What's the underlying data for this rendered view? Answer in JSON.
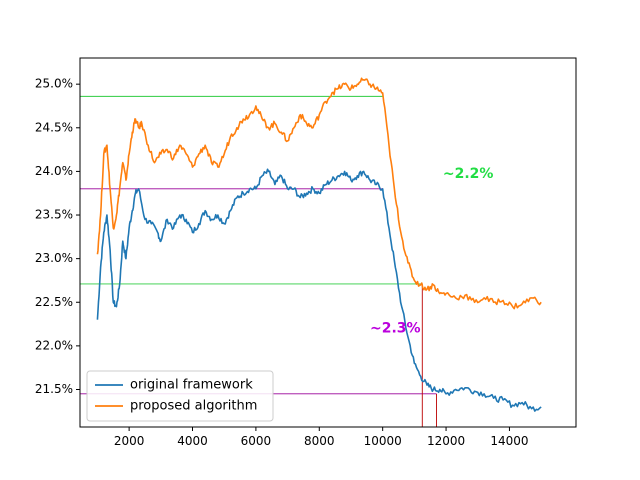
{
  "chart_data": {
    "type": "line",
    "title": "",
    "xlabel": "",
    "ylabel": "",
    "xlim": [
      450,
      16100
    ],
    "ylim": [
      21.07,
      25.3
    ],
    "x_ticks": [
      2000,
      4000,
      6000,
      8000,
      10000,
      12000,
      14000
    ],
    "x_tick_labels": [
      "2000",
      "4000",
      "6000",
      "8000",
      "10000",
      "12000",
      "14000"
    ],
    "y_ticks": [
      21.5,
      22.0,
      22.5,
      23.0,
      23.5,
      24.0,
      24.5,
      25.0
    ],
    "y_tick_labels": [
      "21.5%",
      "22.0%",
      "22.5%",
      "23.0%",
      "23.5%",
      "24.0%",
      "24.5%",
      "25.0%"
    ],
    "grid": false,
    "legend_position": "lower-left",
    "series": [
      {
        "name": "original framework",
        "color": "#1f77b4",
        "x": [
          1000,
          1100,
          1200,
          1300,
          1400,
          1500,
          1600,
          1700,
          1800,
          1900,
          2000,
          2100,
          2200,
          2300,
          2500,
          2700,
          2900,
          3000,
          3200,
          3400,
          3600,
          3800,
          4000,
          4200,
          4400,
          4600,
          4800,
          5000,
          5200,
          5400,
          5600,
          5800,
          6000,
          6200,
          6400,
          6600,
          6800,
          7000,
          7200,
          7400,
          7600,
          7800,
          8000,
          8200,
          8400,
          8600,
          8800,
          9000,
          9200,
          9400,
          9600,
          9800,
          10000,
          10200,
          10400,
          10600,
          10800,
          11000,
          11200,
          11400,
          11600,
          11800,
          12000,
          12300,
          12600,
          12900,
          13200,
          13500,
          13800,
          14100,
          14400,
          14700,
          15000
        ],
        "y": [
          22.3,
          22.9,
          23.3,
          23.5,
          23.1,
          22.5,
          22.45,
          22.7,
          23.2,
          23.0,
          23.35,
          23.55,
          23.75,
          23.8,
          23.45,
          23.4,
          23.3,
          23.2,
          23.45,
          23.35,
          23.5,
          23.45,
          23.3,
          23.4,
          23.55,
          23.45,
          23.5,
          23.4,
          23.55,
          23.7,
          23.75,
          23.8,
          23.8,
          23.95,
          24.0,
          23.85,
          23.95,
          23.8,
          23.8,
          23.7,
          23.75,
          23.8,
          23.75,
          23.85,
          23.9,
          23.95,
          24.0,
          23.9,
          23.95,
          24.0,
          23.9,
          23.85,
          23.8,
          23.35,
          22.9,
          22.45,
          22.1,
          21.8,
          21.65,
          21.55,
          21.5,
          21.5,
          21.45,
          21.5,
          21.52,
          21.48,
          21.45,
          21.4,
          21.38,
          21.32,
          21.35,
          21.28,
          21.3
        ]
      },
      {
        "name": "proposed algorithm",
        "color": "#ff7f0e",
        "x": [
          1000,
          1100,
          1200,
          1300,
          1400,
          1500,
          1600,
          1700,
          1800,
          1900,
          2000,
          2100,
          2200,
          2300,
          2400,
          2600,
          2800,
          3000,
          3200,
          3400,
          3600,
          3800,
          4000,
          4200,
          4400,
          4600,
          4800,
          5000,
          5200,
          5400,
          5600,
          5800,
          6000,
          6200,
          6400,
          6600,
          6800,
          7000,
          7200,
          7400,
          7600,
          7800,
          8000,
          8200,
          8400,
          8600,
          8800,
          9000,
          9200,
          9400,
          9600,
          9800,
          10000,
          10200,
          10400,
          10600,
          10800,
          11000,
          11200,
          11400,
          11600,
          11800,
          12000,
          12300,
          12600,
          12900,
          13200,
          13500,
          13800,
          14100,
          14400,
          14700,
          15000
        ],
        "y": [
          23.05,
          23.5,
          24.2,
          24.3,
          23.8,
          23.35,
          23.5,
          23.8,
          24.1,
          23.9,
          24.2,
          24.45,
          24.6,
          24.5,
          24.55,
          24.3,
          24.1,
          24.2,
          24.25,
          24.15,
          24.3,
          24.2,
          24.05,
          24.2,
          24.3,
          24.1,
          24.05,
          24.2,
          24.4,
          24.5,
          24.6,
          24.65,
          24.75,
          24.6,
          24.5,
          24.55,
          24.45,
          24.35,
          24.5,
          24.65,
          24.55,
          24.5,
          24.65,
          24.8,
          24.9,
          24.95,
          25.0,
          24.95,
          25.0,
          25.05,
          25.0,
          24.95,
          24.9,
          24.3,
          23.7,
          23.25,
          22.95,
          22.75,
          22.7,
          22.65,
          22.7,
          22.6,
          22.6,
          22.55,
          22.58,
          22.5,
          22.55,
          22.5,
          22.52,
          22.45,
          22.48,
          22.55,
          22.5
        ]
      }
    ],
    "reference_lines": [
      {
        "orientation": "horizontal",
        "y": 24.86,
        "x_from": 450,
        "x_to": 10000,
        "color": "#2ecc40"
      },
      {
        "orientation": "horizontal",
        "y": 22.71,
        "x_from": 450,
        "x_to": 11250,
        "color": "#2ecc40"
      },
      {
        "orientation": "horizontal",
        "y": 23.8,
        "x_from": 450,
        "x_to": 10000,
        "color": "#990099"
      },
      {
        "orientation": "horizontal",
        "y": 21.45,
        "x_from": 450,
        "x_to": 11700,
        "color": "#990099"
      },
      {
        "orientation": "vertical",
        "x": 11250,
        "y_from": 21.07,
        "y_to": 22.71,
        "color": "#bb0000"
      },
      {
        "orientation": "vertical",
        "x": 11700,
        "y_from": 21.07,
        "y_to": 21.45,
        "color": "#bb0000"
      }
    ],
    "annotations": [
      {
        "text": "~2.2%",
        "x": 11900,
        "y": 23.97,
        "color": "#22dd44"
      },
      {
        "text": "~2.3%",
        "x": 9600,
        "y": 22.2,
        "color": "#bb00dd"
      }
    ]
  }
}
